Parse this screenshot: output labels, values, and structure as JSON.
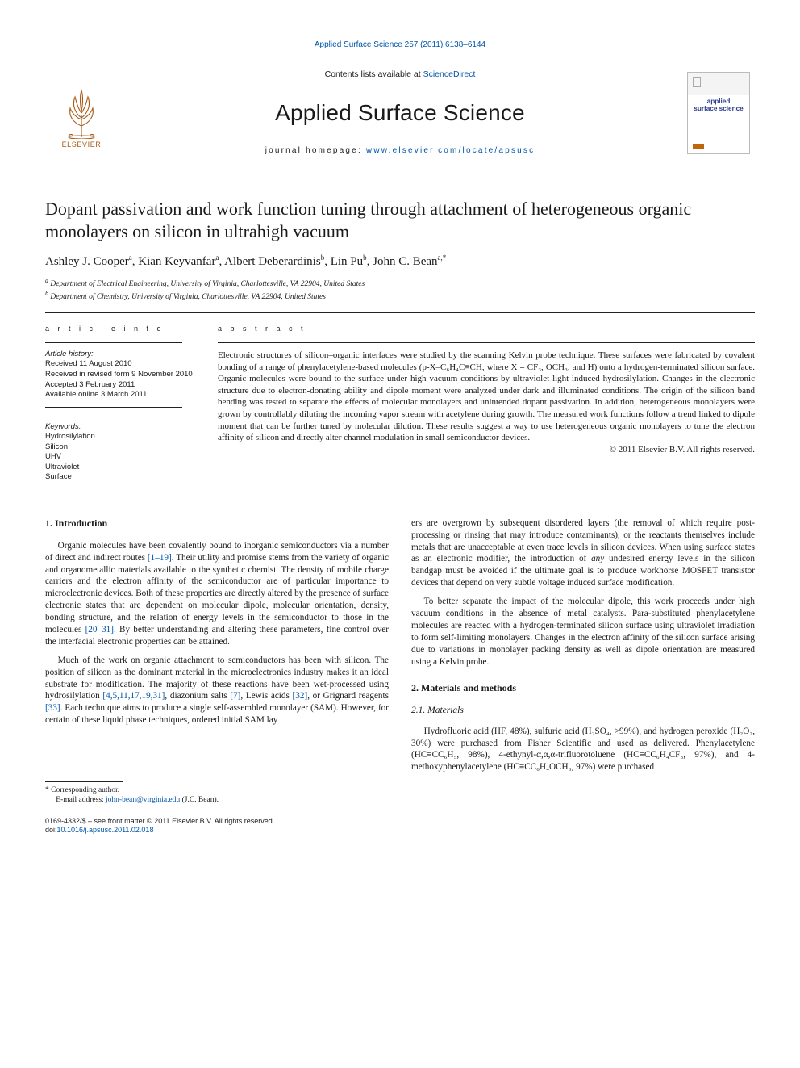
{
  "top_link": {
    "journal": "Applied Surface Science",
    "cite": "257 (2011) 6138–6144"
  },
  "masthead": {
    "contents_prefix": "Contents lists available at ",
    "contents_link": "ScienceDirect",
    "journal_title": "Applied Surface Science",
    "home_prefix": "journal homepage: ",
    "home_url": "www.elsevier.com/locate/apsusc",
    "elsevier": "ELSEVIER",
    "cover_line1": "applied",
    "cover_line2": "surface science"
  },
  "title": "Dopant passivation and work function tuning through attachment of heterogeneous organic monolayers on silicon in ultrahigh vacuum",
  "authors_html": "Ashley J. Cooper<sup>a</sup>, Kian Keyvanfar<sup>a</sup>, Albert Deberardinis<sup>b</sup>, Lin Pu<sup>b</sup>, John C. Bean<sup>a,*</sup>",
  "affiliations": {
    "a": "Department of Electrical Engineering, University of Virginia, Charlottesville, VA 22904, United States",
    "b": "Department of Chemistry, University of Virginia, Charlottesville, VA 22904, United States"
  },
  "info": {
    "heading": "a r t i c l e   i n f o",
    "history_label": "Article history:",
    "received": "Received 11 August 2010",
    "revised": "Received in revised form 9 November 2010",
    "accepted": "Accepted 3 February 2011",
    "online": "Available online 3 March 2011",
    "keywords_label": "Keywords:",
    "keywords": [
      "Hydrosilylation",
      "Silicon",
      "UHV",
      "Ultraviolet",
      "Surface"
    ]
  },
  "abstract": {
    "heading": "a b s t r a c t",
    "text": "Electronic structures of silicon–organic interfaces were studied by the scanning Kelvin probe technique. These surfaces were fabricated by covalent bonding of a range of phenylacetylene-based molecules (p-X–C₆H₄C≡CH, where X = CF₃, OCH₃, and H) onto a hydrogen-terminated silicon surface. Organic molecules were bound to the surface under high vacuum conditions by ultraviolet light-induced hydrosilylation. Changes in the electronic structure due to electron-donating ability and dipole moment were analyzed under dark and illuminated conditions. The origin of the silicon band bending was tested to separate the effects of molecular monolayers and unintended dopant passivation. In addition, heterogeneous monolayers were grown by controllably diluting the incoming vapor stream with acetylene during growth. The measured work functions follow a trend linked to dipole moment that can be further tuned by molecular dilution. These results suggest a way to use heterogeneous organic monolayers to tune the electron affinity of silicon and directly alter channel modulation in small semiconductor devices.",
    "copyright": "© 2011 Elsevier B.V. All rights reserved."
  },
  "sections": {
    "s1_h": "1.  Introduction",
    "s1_p1": "Organic molecules have been covalently bound to inorganic semiconductors via a number of direct and indirect routes [1–19]. Their utility and promise stems from the variety of organic and organometallic materials available to the synthetic chemist. The density of mobile charge carriers and the electron affinity of the semiconductor are of particular importance to microelectronic devices. Both of these properties are directly altered by the presence of surface electronic states that are dependent on molecular dipole, molecular orientation, density, bonding structure, and the relation of energy levels in the semiconductor to those in the molecules [20–31]. By better understanding and altering these parameters, fine control over the interfacial electronic properties can be attained.",
    "s1_p2a": "Much of the work on organic attachment to semiconductors has been with silicon. The position of silicon as the dominant material in the microelectronics industry makes it an ideal substrate for modification. The majority of these reactions have been wet-processed using hydrosilylation [4,5,11,17,19,31], diazonium salts [7], Lewis acids [32], or Grignard reagents [33]. Each technique aims to produce a single self-assembled monolayer (SAM). However, for certain of these liquid phase techniques, ordered initial SAM lay",
    "s1_p2b": "ers are overgrown by subsequent disordered layers (the removal of which require post-processing or rinsing that may introduce contaminants), or the reactants themselves include metals that are unacceptable at even trace levels in silicon devices. When using surface states as an electronic modifier, the introduction of any undesired energy levels in the silicon bandgap must be avoided if the ultimate goal is to produce workhorse MOSFET transistor devices that depend on very subtle voltage induced surface modification.",
    "s1_p3": "To better separate the impact of the molecular dipole, this work proceeds under high vacuum conditions in the absence of metal catalysts. Para-substituted phenylacetylene molecules are reacted with a hydrogen-terminated silicon surface using ultraviolet irradiation to form self-limiting monolayers. Changes in the electron affinity of the silicon surface arising due to variations in monolayer packing density as well as dipole orientation are measured using a Kelvin probe.",
    "s2_h": "2.  Materials and methods",
    "s21_h": "2.1.  Materials",
    "s21_p1": "Hydrofluoric acid (HF, 48%), sulfuric acid (H₂SO₄, >99%), and hydrogen peroxide (H₂O₂, 30%) were purchased from Fisher Scientific and used as delivered. Phenylacetylene (HC≡CC₆H₅, 98%), 4-ethynyl-α,α,α-trifluorotoluene (HC≡CC₆H₄CF₃, 97%), and 4-methoxyphenylacetylene (HC≡CC₆H₄OCH₃, 97%) were purchased"
  },
  "footnote": {
    "corr": "* Corresponding author.",
    "email_label": "E-mail address: ",
    "email": "john-bean@virginia.edu",
    "email_paren": " (J.C. Bean)."
  },
  "bottom": {
    "line1": "0169-4332/$ – see front matter © 2011 Elsevier B.V. All rights reserved.",
    "doi_label": "doi:",
    "doi": "10.1016/j.apsusc.2011.02.018"
  },
  "refs": {
    "r1_19": "[1–19]",
    "r20_31": "[20–31]",
    "r4etc": "[4,5,11,17,19,31]",
    "r7": "[7]",
    "r32": "[32]",
    "r33": "[33]"
  },
  "colors": {
    "link": "#0055aa",
    "elsevier": "#a85a16",
    "cover_brand": "#2a3a8a"
  }
}
